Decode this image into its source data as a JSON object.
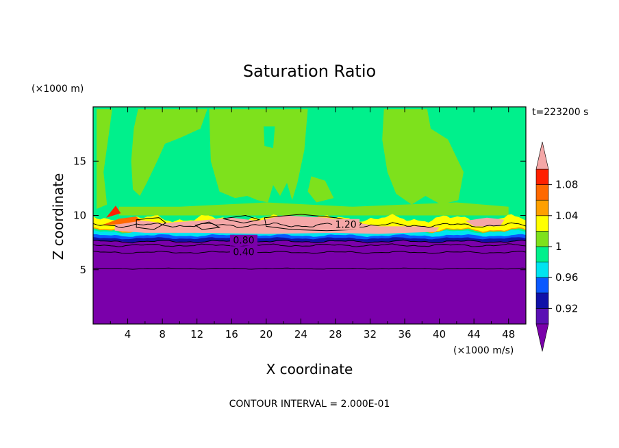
{
  "chart_data": {
    "type": "heatmap",
    "title": "Saturation Ratio",
    "xlabel": "X coordinate",
    "ylabel": "Z coordinate",
    "x_unit": "(×1000 m/s)",
    "y_unit": "(×1000 m)",
    "time_label": "t=223200 s",
    "footer": "CONTOUR INTERVAL = 2.000E-01",
    "xlim": [
      0,
      50
    ],
    "ylim": [
      0,
      20
    ],
    "x_ticks": [
      "4",
      "8",
      "12",
      "16",
      "20",
      "24",
      "28",
      "32",
      "36",
      "40",
      "44",
      "48"
    ],
    "y_ticks": [
      "5",
      "10",
      "15"
    ],
    "contour_labels": [
      "0.40",
      "0.80",
      "1.20"
    ],
    "colorbar": {
      "tick_labels": [
        "1.08",
        "1.04",
        "1",
        "0.96",
        "0.92"
      ],
      "levels": [
        {
          "lower": null,
          "upper": 0.9,
          "color": "#7a00aa"
        },
        {
          "lower": 0.9,
          "upper": 0.92,
          "color": "#5a10b4"
        },
        {
          "lower": 0.92,
          "upper": 0.94,
          "color": "#1010a8"
        },
        {
          "lower": 0.94,
          "upper": 0.96,
          "color": "#0a58ff"
        },
        {
          "lower": 0.96,
          "upper": 0.98,
          "color": "#00e4f0"
        },
        {
          "lower": 0.98,
          "upper": 1.0,
          "color": "#00f08c"
        },
        {
          "lower": 1.0,
          "upper": 1.02,
          "color": "#7ee11c"
        },
        {
          "lower": 1.02,
          "upper": 1.04,
          "color": "#ffff00"
        },
        {
          "lower": 1.04,
          "upper": 1.06,
          "color": "#ffa000"
        },
        {
          "lower": 1.06,
          "upper": 1.08,
          "color": "#ff6800"
        },
        {
          "lower": 1.08,
          "upper": 1.1,
          "color": "#ff2000"
        },
        {
          "lower": 1.1,
          "upper": null,
          "color": "#f4a7a7"
        }
      ]
    }
  }
}
